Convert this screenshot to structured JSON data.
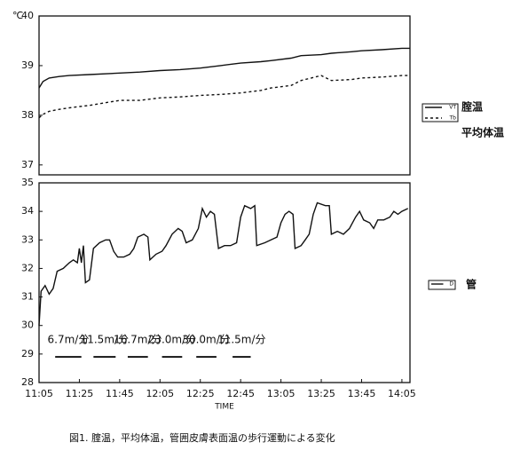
{
  "chart_data": [
    {
      "type": "line",
      "ylabel": "℃",
      "xlim": [
        "11:05",
        "14:09"
      ],
      "ylim": [
        36.8,
        40
      ],
      "yticks": [
        37,
        38,
        39,
        40
      ],
      "x": [
        "11:05",
        "11:07",
        "11:10",
        "11:15",
        "11:20",
        "11:30",
        "11:45",
        "11:55",
        "12:05",
        "12:15",
        "12:25",
        "12:35",
        "12:45",
        "12:55",
        "13:00",
        "13:10",
        "13:15",
        "13:25",
        "13:30",
        "13:40",
        "13:45",
        "13:55",
        "14:05",
        "14:09"
      ],
      "series": [
        {
          "name": "VT",
          "label": "腟温",
          "color": "#111111",
          "style": "solid",
          "values": [
            38.55,
            38.68,
            38.75,
            38.78,
            38.8,
            38.82,
            38.85,
            38.87,
            38.9,
            38.92,
            38.95,
            39.0,
            39.05,
            39.08,
            39.1,
            39.15,
            39.2,
            39.22,
            39.25,
            39.28,
            39.3,
            39.32,
            39.35,
            39.35
          ]
        },
        {
          "name": "Tb",
          "label": "平均体温",
          "color": "#111111",
          "style": "dashed",
          "values": [
            37.95,
            38.02,
            38.08,
            38.12,
            38.15,
            38.2,
            38.3,
            38.3,
            38.35,
            38.37,
            38.4,
            38.42,
            38.45,
            38.5,
            38.55,
            38.6,
            38.7,
            38.8,
            38.7,
            38.72,
            38.75,
            38.77,
            38.8,
            38.8
          ]
        }
      ]
    },
    {
      "type": "line",
      "xlabel": "TIME",
      "caption": "図1. 腟温，平均体温，管囲皮膚表面温の歩行運動による変化",
      "xlim": [
        "11:05",
        "14:09"
      ],
      "ylim": [
        28,
        35
      ],
      "yticks": [
        28,
        29,
        30,
        31,
        32,
        33,
        34,
        35
      ],
      "xticks": [
        "11:05",
        "11:25",
        "11:45",
        "12:05",
        "12:25",
        "12:45",
        "13:05",
        "13:25",
        "13:45",
        "14:05"
      ],
      "x": [
        "11:05",
        "11:06",
        "11:08",
        "11:10",
        "11:12",
        "11:14",
        "11:17",
        "11:20",
        "11:22",
        "11:24",
        "11:25",
        "11:26",
        "11:27",
        "11:28",
        "11:30",
        "11:32",
        "11:35",
        "11:38",
        "11:40",
        "11:42",
        "11:44",
        "11:47",
        "11:50",
        "11:52",
        "11:54",
        "11:57",
        "11:59",
        "12:00",
        "12:03",
        "12:06",
        "12:08",
        "12:11",
        "12:14",
        "12:16",
        "12:18",
        "12:21",
        "12:24",
        "12:26",
        "12:28",
        "12:30",
        "12:32",
        "12:34",
        "12:37",
        "12:40",
        "12:43",
        "12:45",
        "12:47",
        "12:50",
        "12:52",
        "12:53",
        "12:57",
        "13:00",
        "13:03",
        "13:05",
        "13:07",
        "13:09",
        "13:11",
        "13:12",
        "13:15",
        "13:17",
        "13:19",
        "13:21",
        "13:23",
        "13:27",
        "13:29",
        "13:30",
        "13:33",
        "13:36",
        "13:39",
        "13:42",
        "13:44",
        "13:46",
        "13:49",
        "13:51",
        "13:53",
        "13:56",
        "13:59",
        "14:01",
        "14:03",
        "14:05",
        "14:08"
      ],
      "series": [
        {
          "name": "D",
          "label": "管",
          "color": "#111111",
          "style": "solid",
          "values": [
            30.0,
            31.2,
            31.4,
            31.1,
            31.3,
            31.9,
            32.0,
            32.2,
            32.3,
            32.2,
            32.7,
            32.2,
            32.8,
            31.5,
            31.6,
            32.7,
            32.9,
            33.0,
            33.0,
            32.6,
            32.4,
            32.4,
            32.5,
            32.7,
            33.1,
            33.2,
            33.1,
            32.3,
            32.5,
            32.6,
            32.8,
            33.2,
            33.4,
            33.3,
            32.9,
            33.0,
            33.4,
            34.1,
            33.8,
            34.0,
            33.9,
            32.7,
            32.8,
            32.8,
            32.9,
            33.8,
            34.2,
            34.1,
            34.2,
            32.8,
            32.9,
            33.0,
            33.1,
            33.6,
            33.9,
            34.0,
            33.9,
            32.7,
            32.8,
            33.0,
            33.2,
            33.9,
            34.3,
            34.2,
            34.2,
            33.2,
            33.3,
            33.2,
            33.4,
            33.8,
            34.0,
            33.7,
            33.6,
            33.4,
            33.7,
            33.7,
            33.8,
            34.0,
            33.9,
            34.0,
            34.1
          ]
        }
      ],
      "annotations": [
        {
          "text": "6.7m/分",
          "x": [
            "11:13",
            "11:26"
          ],
          "y": 28.9
        },
        {
          "text": "11.5m/分",
          "x": [
            "11:32",
            "11:43"
          ],
          "y": 28.9
        },
        {
          "text": "16.7m/分",
          "x": [
            "11:49",
            "11:59"
          ],
          "y": 28.9
        },
        {
          "text": "23.0m/分",
          "x": [
            "12:06",
            "12:16"
          ],
          "y": 28.9
        },
        {
          "text": "30.0m/分",
          "x": [
            "12:23",
            "12:33"
          ],
          "y": 28.9
        },
        {
          "text": "11.5m/分",
          "x": [
            "12:41",
            "12:50"
          ],
          "y": 28.9
        }
      ]
    }
  ]
}
